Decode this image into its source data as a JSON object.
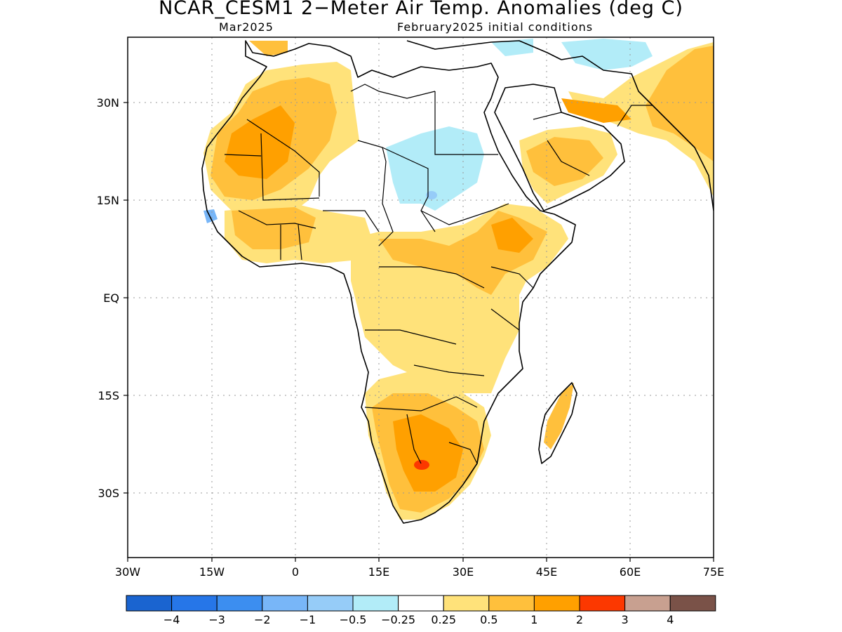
{
  "title": "NCAR_CESM1 2−Meter Air Temp. Anomalies (deg C)",
  "subtitle_left": "Mar2025",
  "subtitle_right": "February2025 initial conditions",
  "lat_labels": [
    "30N",
    "15N",
    "EQ",
    "15S",
    "30S"
  ],
  "lon_labels": [
    "30W",
    "15W",
    "0",
    "15E",
    "30E",
    "45E",
    "60E",
    "75E"
  ],
  "colorbar": {
    "colors": [
      "#1a64d0",
      "#2676e8",
      "#3c8ef0",
      "#78b6f8",
      "#96ccf8",
      "#b2ecf8",
      "#ffffff",
      "#ffe27a",
      "#ffc03c",
      "#ffa000",
      "#fc3800",
      "#c8a090",
      "#7a5248"
    ],
    "labels": [
      "−4",
      "−3",
      "−2",
      "−1",
      "−0.5",
      "−0.25",
      "0.25",
      "0.5",
      "1",
      "2",
      "3",
      "4"
    ]
  }
}
